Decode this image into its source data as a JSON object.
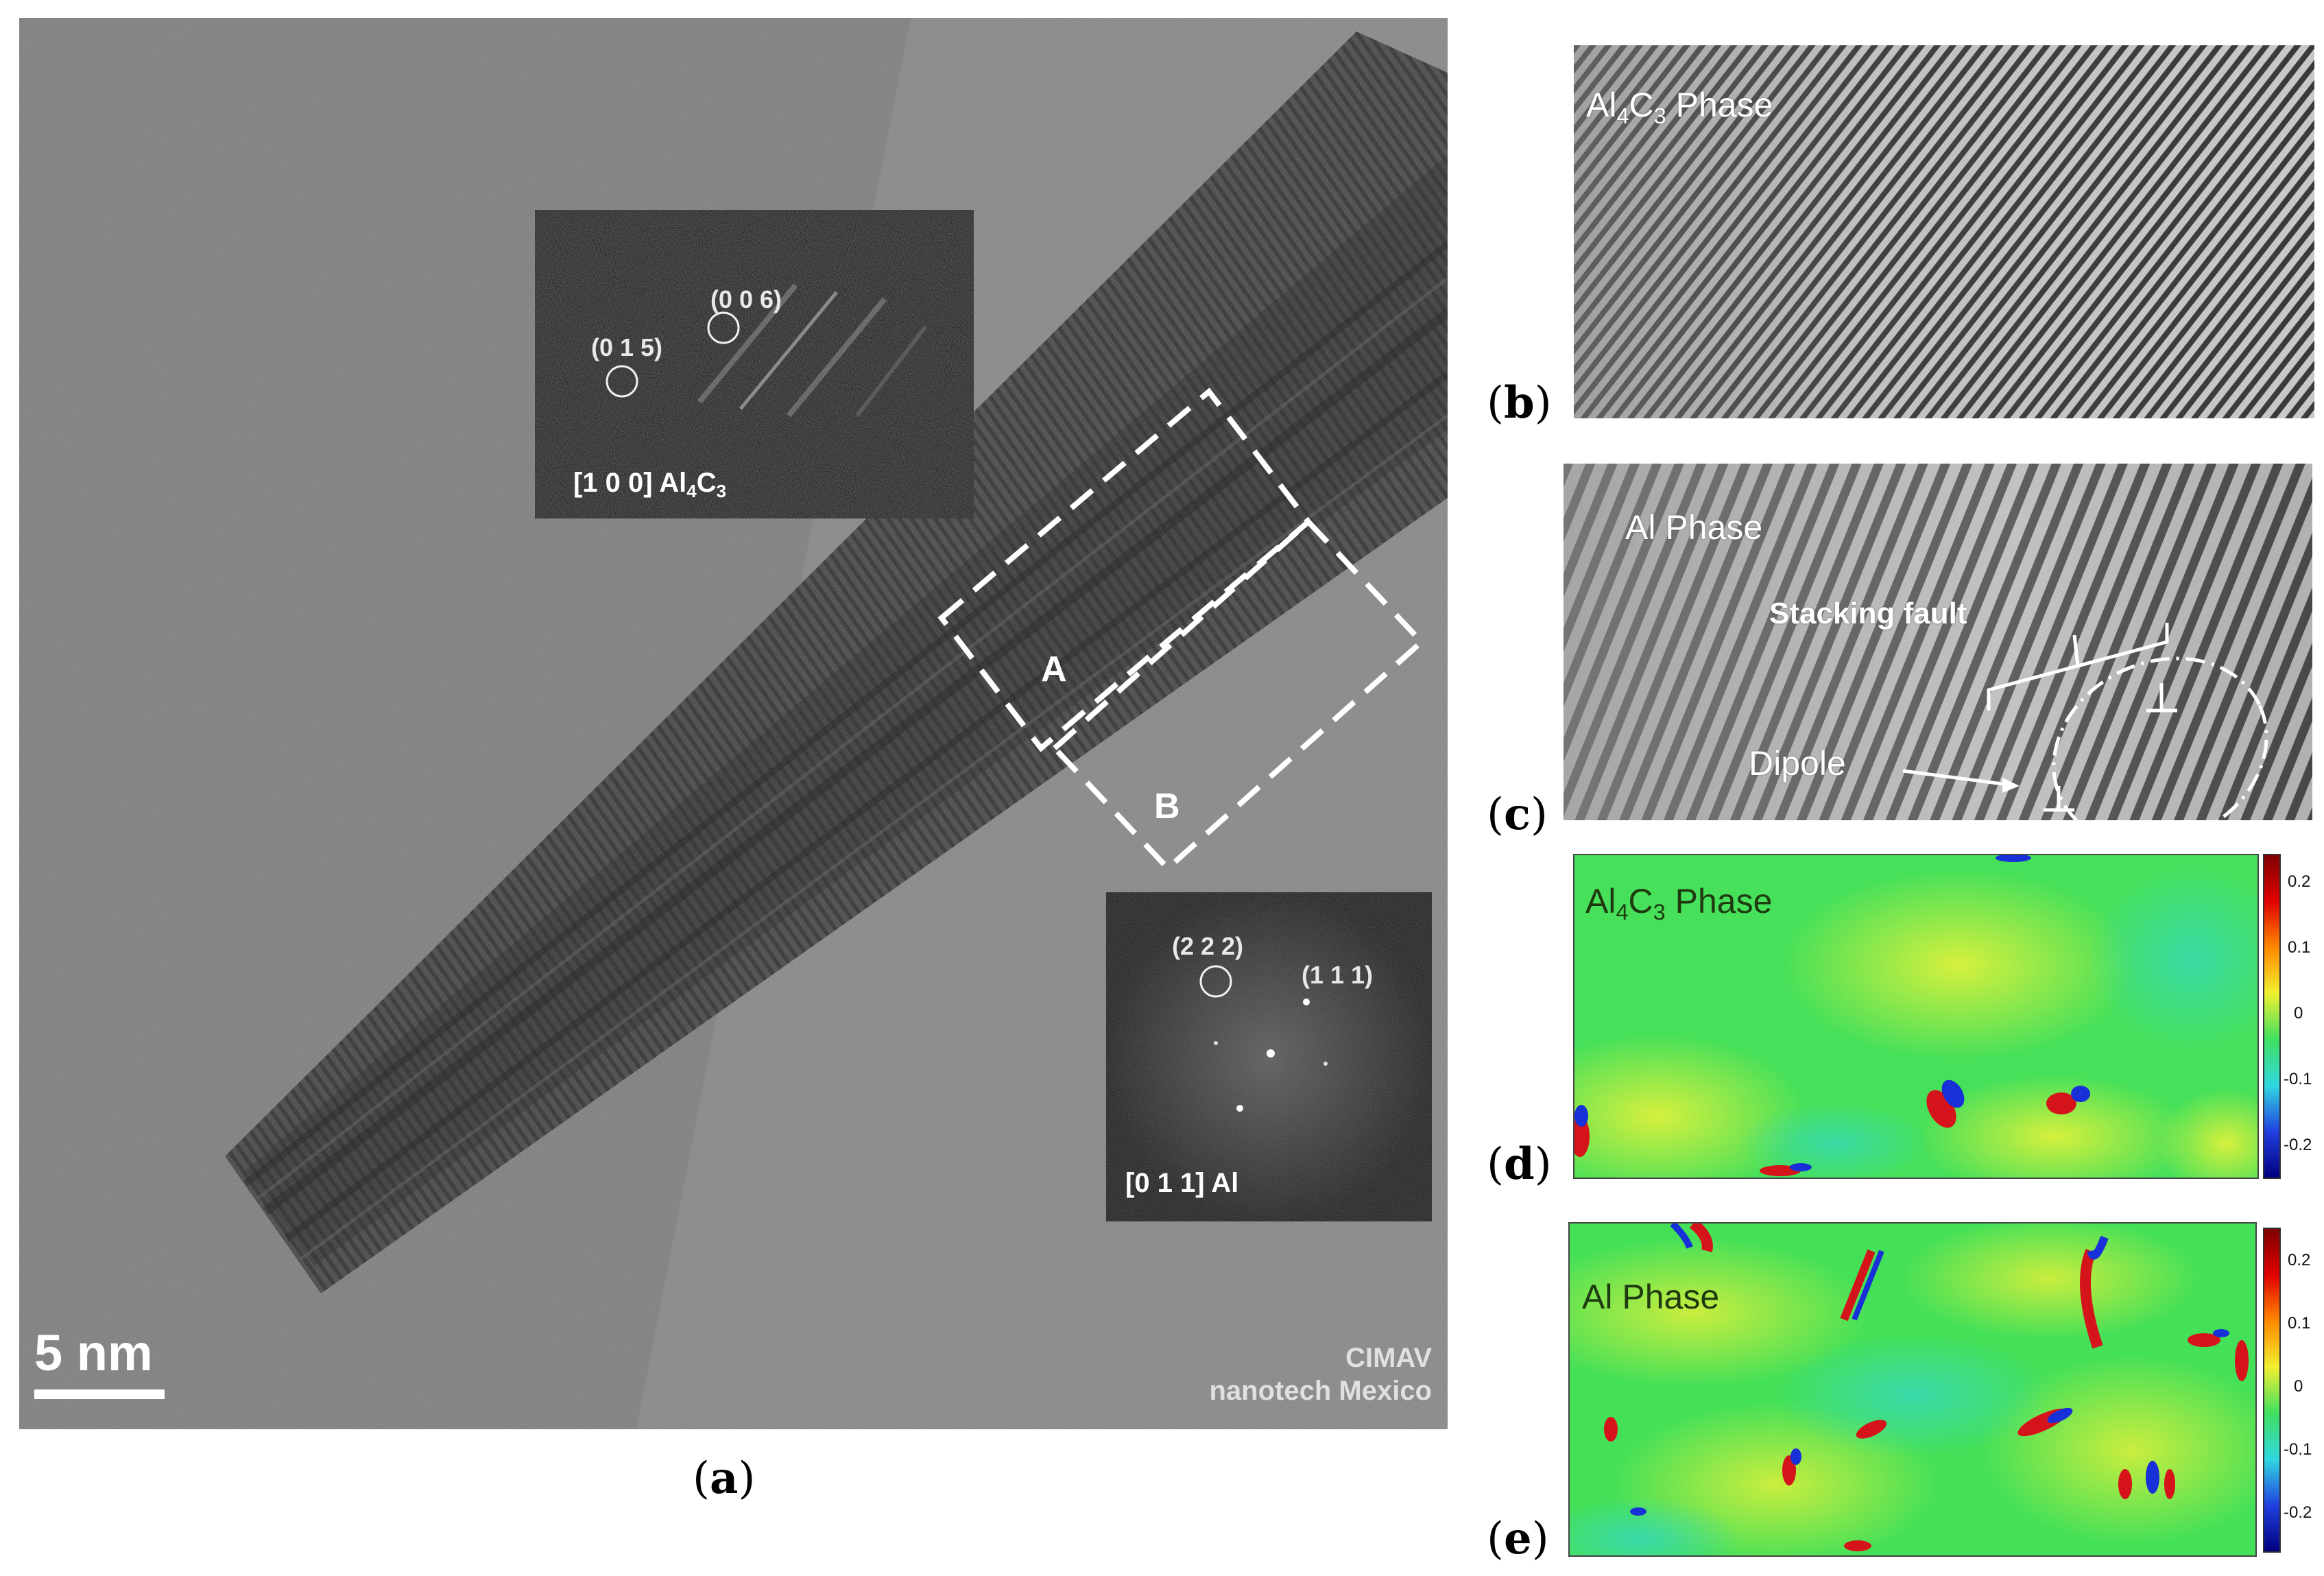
{
  "panel_a": {
    "label": "a",
    "inset_top": {
      "spot1": "(0 0 6)",
      "spot2": "(0 1 5)",
      "zone_prefix": "[1 0  0] Al",
      "zone_sub1": "4",
      "zone_mid": "C",
      "zone_sub2": "3"
    },
    "inset_bottom": {
      "spot1": "(2 2 2)",
      "spot2": "(1 1 1)",
      "zone": "[0 1 1] Al"
    },
    "region_a": "A",
    "region_b": "B",
    "scale_bar": "5 nm",
    "credit_line1": "CIMAV",
    "credit_line2": "nanotech Mexico"
  },
  "panel_b": {
    "label": "b",
    "title_prefix": "Al",
    "title_sub1": "4",
    "title_mid": "C",
    "title_sub2": "3",
    "title_suffix": " Phase"
  },
  "panel_c": {
    "label": "c",
    "title": "Al Phase",
    "annotation_fault": "Stacking fault",
    "annotation_dipole": "Dipole"
  },
  "panel_d": {
    "label": "d",
    "title_prefix": "Al",
    "title_sub1": "4",
    "title_mid": "C",
    "title_sub2": "3",
    "title_suffix": " Phase",
    "colorbar_ticks": [
      "0.2",
      "0.1",
      "0",
      "-0.1",
      "-0.2"
    ]
  },
  "panel_e": {
    "label": "e",
    "title": "Al Phase",
    "colorbar_ticks": [
      "0.2",
      "0.1",
      "0",
      "-0.1",
      "-0.2"
    ]
  },
  "colors": {
    "map_green": "#3fe45a",
    "map_yellow": "#d8f03a",
    "map_red": "#d4141a",
    "map_blue": "#1830d8",
    "map_cyan": "#2ad8d0"
  }
}
